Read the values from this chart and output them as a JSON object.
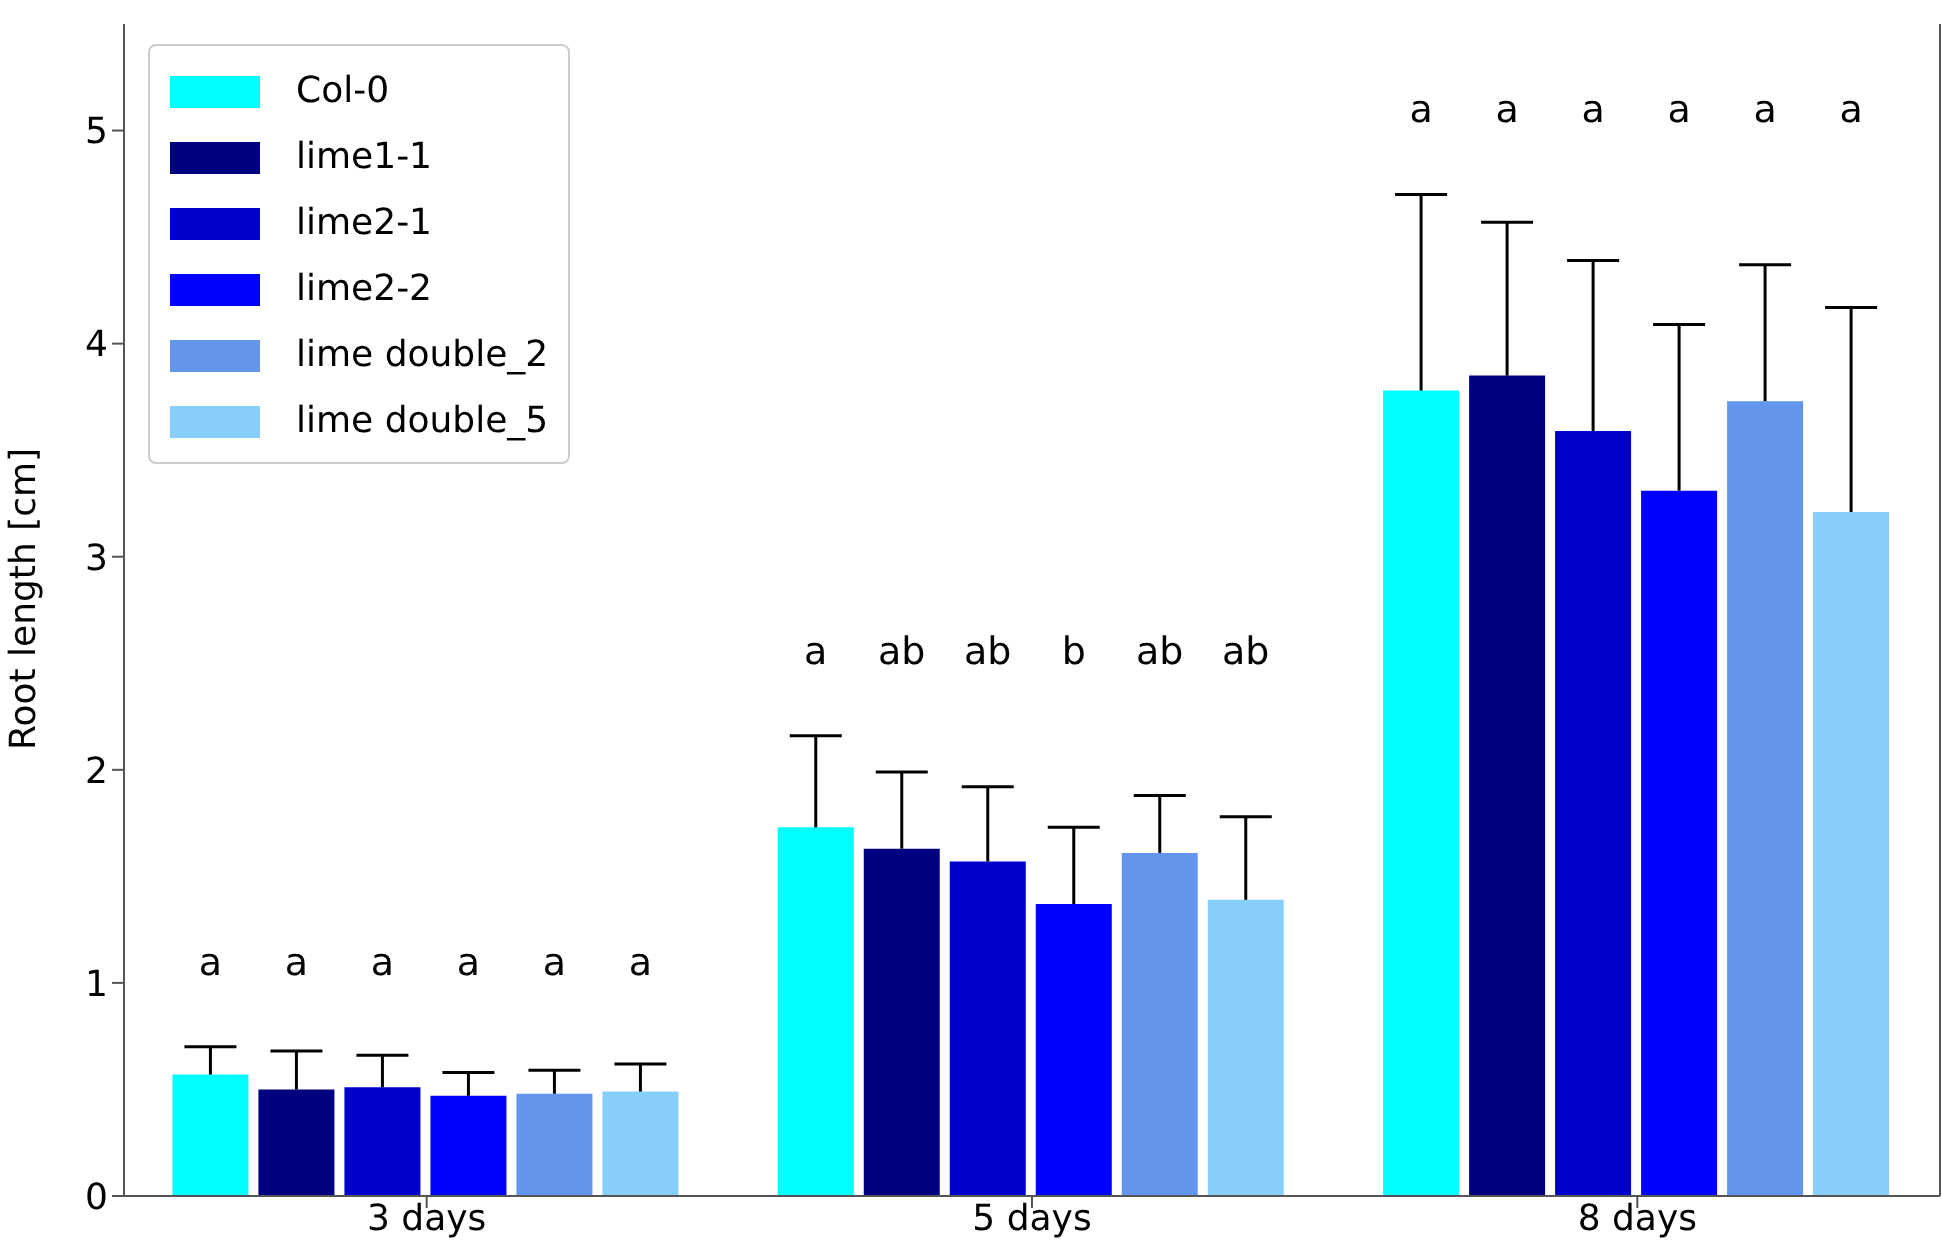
{
  "chart_data": {
    "type": "bar",
    "ylabel": "Root length [cm]",
    "categories": [
      "3 days",
      "5 days",
      "8 days"
    ],
    "series": [
      {
        "name": "Col-0",
        "color": "#00ffff",
        "values": [
          0.57,
          1.73,
          3.78
        ],
        "errors": [
          [
            0.57,
            0.7
          ],
          [
            1.73,
            2.16
          ],
          [
            3.78,
            4.7
          ]
        ]
      },
      {
        "name": "lime1-1",
        "color": "#000080",
        "values": [
          0.5,
          1.63,
          3.85
        ],
        "errors": [
          [
            0.5,
            0.68
          ],
          [
            1.63,
            1.99
          ],
          [
            3.85,
            4.57
          ]
        ]
      },
      {
        "name": "lime2-1",
        "color": "#0000cd",
        "values": [
          0.51,
          1.57,
          3.59
        ],
        "errors": [
          [
            0.51,
            0.66
          ],
          [
            1.57,
            1.92
          ],
          [
            3.59,
            4.39
          ]
        ]
      },
      {
        "name": "lime2-2",
        "color": "#0000ff",
        "values": [
          0.47,
          1.37,
          3.31
        ],
        "errors": [
          [
            0.47,
            0.58
          ],
          [
            1.37,
            1.73
          ],
          [
            3.31,
            4.09
          ]
        ]
      },
      {
        "name": "lime double_2",
        "color": "#6495ed",
        "values": [
          0.48,
          1.61,
          3.73
        ],
        "errors": [
          [
            0.48,
            0.59
          ],
          [
            1.61,
            1.88
          ],
          [
            3.73,
            4.37
          ]
        ]
      },
      {
        "name": "lime double_5",
        "color": "#87cefa",
        "values": [
          0.49,
          1.39,
          3.21
        ],
        "errors": [
          [
            0.49,
            0.62
          ],
          [
            1.39,
            1.78
          ],
          [
            3.21,
            4.17
          ]
        ]
      }
    ],
    "annotations": [
      "a",
      "a",
      "a",
      "a",
      "a",
      "a",
      "a",
      "ab",
      "ab",
      "b",
      "ab",
      "ab",
      "a",
      "a",
      "a",
      "a",
      "a",
      "a"
    ],
    "ylim": [
      0,
      5.5
    ],
    "yticks": [
      0,
      1,
      2,
      3,
      4,
      5
    ],
    "legend": "top left"
  }
}
